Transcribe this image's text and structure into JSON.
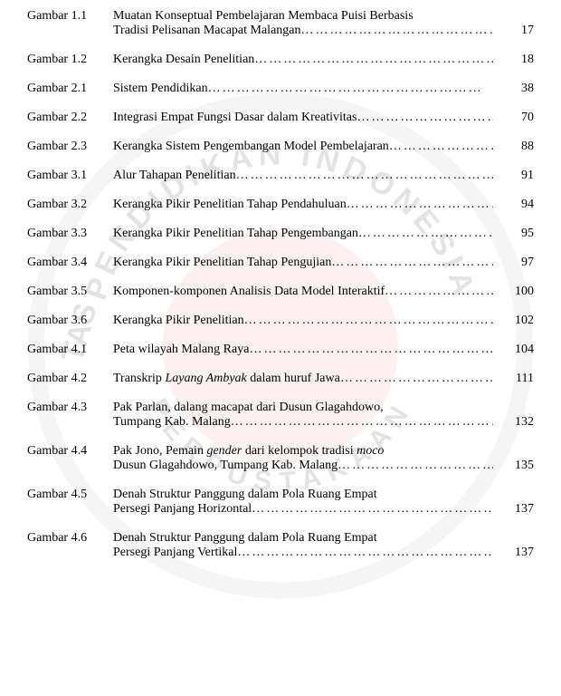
{
  "entries": [
    {
      "label": "Gambar 1.1",
      "lines": [
        {
          "text": "Muatan Konseptual Pembelajaran Membaca Puisi Berbasis",
          "dots": false
        },
        {
          "text": "Tradisi Pelisanan Macapat Malangan",
          "dots": true
        }
      ],
      "page": "17"
    },
    {
      "label": "Gambar 1.2",
      "lines": [
        {
          "text": "Kerangka Desain Penelitian",
          "dots": true
        }
      ],
      "page": "18"
    },
    {
      "label": "Gambar 2.1",
      "lines": [
        {
          "text": "Sistem Pendidikan",
          "dots": true
        }
      ],
      "page": "38"
    },
    {
      "label": "Gambar 2.2",
      "lines": [
        {
          "text": "Integrasi Empat Fungsi Dasar dalam Kreativitas",
          "dots": true
        }
      ],
      "page": "70"
    },
    {
      "label": "Gambar 2.3",
      "lines": [
        {
          "text": "Kerangka Sistem Pengembangan Model Pembelajaran",
          "dots": true
        }
      ],
      "page": "88"
    },
    {
      "label": "Gambar 3.1",
      "lines": [
        {
          "text": " Alur Tahapan Penelitian",
          "dots": true
        }
      ],
      "page": "91"
    },
    {
      "label": "Gambar 3.2",
      "lines": [
        {
          "text": "Kerangka Pikir Penelitian Tahap Pendahuluan",
          "dots": true
        }
      ],
      "page": "94"
    },
    {
      "label": "Gambar 3.3",
      "lines": [
        {
          "text": "Kerangka Pikir Penelitian Tahap Pengembangan",
          "dots": true
        }
      ],
      "page": "95"
    },
    {
      "label": "Gambar 3.4",
      "lines": [
        {
          "text": "Kerangka Pikir Penelitian Tahap Pengujian",
          "dots": true
        }
      ],
      "page": "97"
    },
    {
      "label": "Gambar 3.5",
      "lines": [
        {
          "text": "Komponen-komponen Analisis Data Model Interaktif",
          "dots": true
        }
      ],
      "page": "100"
    },
    {
      "label": "Gambar 3.6",
      "lines": [
        {
          "text": "Kerangka Pikir Penelitian",
          "dots": true
        }
      ],
      "page": "102"
    },
    {
      "label": "Gambar 4.1",
      "lines": [
        {
          "text": "Peta wilayah Malang Raya",
          "dots": true
        }
      ],
      "page": "104"
    },
    {
      "label": "Gambar 4.2",
      "lines": [
        {
          "text_html": "Transkrip <span class=\"italic\">Layang Ambyak</span> dalam huruf Jawa",
          "dots": true
        }
      ],
      "page": "111"
    },
    {
      "label": "Gambar 4.3",
      "lines": [
        {
          "text": "Pak Parlan, dalang macapat dari Dusun Glagahdowo,",
          "dots": false
        },
        {
          "text": "Tumpang Kab. Malang",
          "dots": true
        }
      ],
      "page": "132"
    },
    {
      "label": "Gambar 4.4",
      "lines": [
        {
          "text_html": "Pak Jono, Pemain <span class=\"italic\">gender</span> dari kelompok tradisi <span class=\"italic\">moco</span>",
          "dots": false
        },
        {
          "text": "Dusun Glagahdowo, Tumpang Kab. Malang",
          "dots": true
        }
      ],
      "page": "135"
    },
    {
      "label": "Gambar 4.5",
      "lines": [
        {
          "text": "Denah Struktur Panggung dalam Pola Ruang Empat",
          "dots": false
        },
        {
          "text": "Persegi Panjang Horizontal",
          "dots": true
        }
      ],
      "page": "137"
    },
    {
      "label": "Gambar 4.6",
      "lines": [
        {
          "text": "Denah Struktur Panggung dalam Pola Ruang Empat",
          "dots": false
        },
        {
          "text": "Persegi Panjang Vertikal",
          "dots": true
        }
      ],
      "page": "137"
    }
  ],
  "watermark": {
    "circle_color": "#c0c0c0",
    "inner_color": "#d9463a",
    "text_color": "#4a4a4a"
  }
}
